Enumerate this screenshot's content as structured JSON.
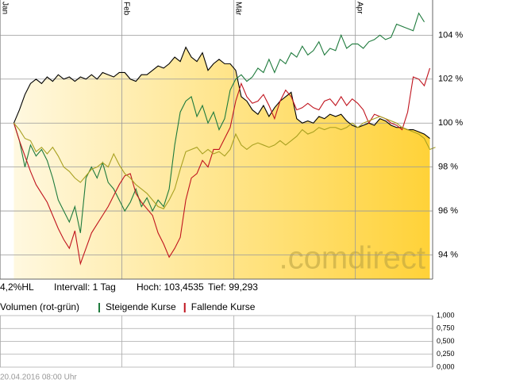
{
  "chart_data": [
    {
      "type": "line",
      "watermark": ".comdirect",
      "info": [
        "4,2%HL",
        "Intervall: 1 Tag",
        "Hoch: 103,4535",
        "Tief:  99,293"
      ],
      "xlim": [
        -2.5,
        75.5
      ],
      "xticks": [
        {
          "value": -2.5,
          "label": "Jan"
        },
        {
          "value": 19.4,
          "label": "Feb"
        },
        {
          "value": 39.6,
          "label": "Mär"
        },
        {
          "value": 61.5,
          "label": "Apr"
        }
      ],
      "ylim": [
        92.9,
        105.6
      ],
      "yticks": [
        {
          "value": 94,
          "label": "94 %"
        },
        {
          "value": 96,
          "label": "96 %"
        },
        {
          "value": 98,
          "label": "98 %"
        },
        {
          "value": 100,
          "label": "100 %"
        },
        {
          "value": 102,
          "label": "102 %"
        },
        {
          "value": 104,
          "label": "104 %"
        }
      ],
      "grid": true,
      "series": [
        {
          "color": "#000000",
          "area": true,
          "values": [
            100.0,
            100.6,
            101.3,
            101.8,
            102.0,
            101.8,
            102.1,
            101.9,
            102.2,
            102.0,
            102.1,
            101.9,
            102.1,
            102.0,
            102.2,
            102.0,
            102.3,
            102.2,
            102.1,
            102.3,
            102.3,
            102.0,
            101.9,
            102.2,
            102.2,
            102.4,
            102.6,
            102.5,
            102.7,
            103.0,
            102.8,
            103.45,
            103.0,
            102.8,
            103.2,
            102.4,
            102.7,
            102.9,
            102.7,
            102.7,
            102.4,
            101.2,
            101.0,
            100.6,
            100.4,
            100.8,
            100.3,
            100.7,
            101.0,
            101.2,
            101.4,
            100.2,
            100.0,
            100.1,
            100.0,
            100.3,
            100.2,
            100.4,
            100.3,
            100.4,
            100.1,
            99.9,
            99.8,
            99.9,
            100.0,
            99.9,
            100.2,
            100.1,
            99.9,
            99.8,
            99.8,
            99.7,
            99.7,
            99.6,
            99.5,
            99.3
          ]
        },
        {
          "color": "#1e7a3c",
          "values": [
            100.0,
            99.2,
            98.0,
            99.0,
            98.5,
            98.8,
            98.3,
            97.5,
            96.5,
            96.0,
            95.5,
            96.2,
            95.0,
            97.5,
            98.0,
            97.5,
            98.2,
            97.3,
            97.0,
            96.5,
            96.0,
            96.4,
            97.0,
            96.2,
            96.6,
            96.0,
            96.5,
            96.2,
            97.0,
            99.0,
            100.5,
            101.0,
            101.2,
            100.3,
            100.8,
            100.0,
            100.5,
            99.7,
            100.2,
            101.5,
            102.0,
            102.2,
            101.9,
            102.1,
            102.5,
            102.3,
            102.9,
            102.3,
            102.9,
            102.7,
            103.2,
            103.0,
            103.5,
            103.1,
            103.3,
            103.7,
            103.1,
            103.4,
            103.3,
            104.0,
            103.4,
            103.6,
            103.6,
            103.4,
            103.7,
            103.8,
            104.0,
            103.8,
            103.9,
            104.5,
            104.4,
            104.3,
            104.2,
            105.0,
            104.6
          ]
        },
        {
          "color": "#c0141e",
          "values": [
            100.0,
            99.2,
            98.5,
            97.8,
            97.2,
            96.8,
            96.4,
            95.8,
            95.2,
            94.7,
            94.3,
            95.1,
            93.6,
            94.3,
            95.0,
            95.4,
            95.8,
            96.2,
            96.7,
            97.2,
            97.6,
            97.7,
            96.8,
            96.4,
            96.1,
            95.8,
            95.0,
            94.5,
            93.9,
            94.3,
            94.8,
            96.5,
            97.5,
            97.7,
            98.3,
            98.0,
            98.8,
            98.8,
            99.3,
            99.8,
            101.0,
            101.8,
            101.2,
            100.9,
            101.0,
            101.3,
            100.8,
            100.2,
            101.0,
            101.5,
            101.2,
            100.6,
            100.7,
            100.9,
            100.7,
            100.6,
            101.0,
            101.1,
            100.8,
            101.2,
            100.8,
            101.1,
            100.9,
            100.6,
            100.0,
            100.4,
            100.3,
            100.2,
            100.0,
            99.9,
            99.7,
            100.5,
            102.1,
            102.0,
            101.7,
            102.5
          ]
        },
        {
          "color": "#a8a020",
          "values": [
            100.0,
            99.7,
            99.3,
            99.2,
            98.7,
            98.9,
            98.6,
            98.9,
            98.5,
            98.0,
            97.8,
            97.5,
            97.3,
            97.6,
            97.9,
            98.0,
            98.2,
            98.0,
            98.6,
            98.1,
            97.7,
            97.5,
            97.2,
            97.0,
            96.8,
            96.5,
            96.2,
            96.1,
            96.5,
            97.0,
            97.9,
            98.7,
            98.8,
            98.9,
            98.6,
            98.8,
            98.6,
            98.7,
            98.5,
            98.8,
            99.5,
            99.0,
            98.8,
            99.0,
            99.1,
            99.0,
            98.9,
            99.0,
            99.2,
            99.0,
            99.2,
            99.4,
            99.7,
            99.5,
            99.6,
            99.8,
            99.7,
            99.8,
            99.8,
            99.7,
            99.8,
            100.0,
            99.8,
            100.0,
            100.1,
            100.2,
            100.3,
            100.2,
            100.1,
            100.0,
            99.8,
            99.7,
            99.6,
            99.5,
            99.3,
            98.8,
            98.9
          ]
        }
      ]
    },
    {
      "type": "volume",
      "title": "Volumen (rot-grün)",
      "legend": [
        {
          "name": "Steigende Kurse",
          "color": "#1e7a3c"
        },
        {
          "name": "Fallende Kurse",
          "color": "#c0141e"
        }
      ],
      "ylim": [
        0,
        1
      ],
      "yticks": [
        {
          "value": 0,
          "label": "0,000"
        },
        {
          "value": 0.25,
          "label": "0,250"
        },
        {
          "value": 0.5,
          "label": "0,500"
        },
        {
          "value": 0.75,
          "label": "0,750"
        },
        {
          "value": 1,
          "label": "1,000"
        }
      ],
      "footer": "20.04.2016 08:00 Uhr"
    }
  ]
}
